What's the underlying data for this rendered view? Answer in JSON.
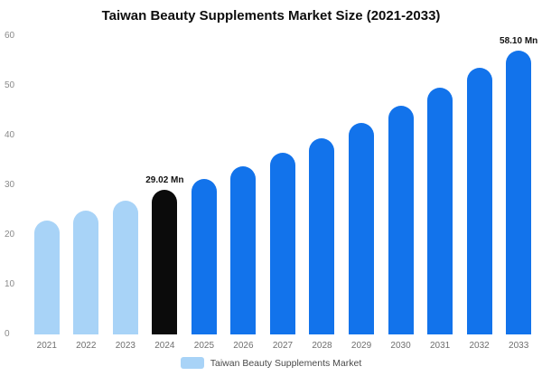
{
  "chart_data": {
    "type": "bar",
    "title": "Taiwan Beauty Supplements Market Size (2021-2033)",
    "categories": [
      "2021",
      "2022",
      "2023",
      "2024",
      "2025",
      "2026",
      "2027",
      "2028",
      "2029",
      "2030",
      "2031",
      "2032",
      "2033"
    ],
    "values": [
      23.0,
      24.9,
      26.9,
      29.02,
      31.3,
      33.8,
      36.5,
      39.4,
      42.6,
      46.0,
      49.7,
      53.7,
      58.1
    ],
    "value_labels": [
      "",
      "",
      "",
      "29.02 Mn",
      "",
      "",
      "",
      "",
      "",
      "",
      "",
      "",
      "58.10 Mn"
    ],
    "bar_colors": [
      "#a8d3f7",
      "#a8d3f7",
      "#a8d3f7",
      "#0b0b0b",
      "#1273eb",
      "#1273eb",
      "#1273eb",
      "#1273eb",
      "#1273eb",
      "#1273eb",
      "#1273eb",
      "#1273eb",
      "#1273eb"
    ],
    "ylim": [
      0,
      60
    ],
    "yticks": [
      0,
      10,
      20,
      30,
      40,
      50,
      60
    ],
    "xlabel": "",
    "ylabel": "",
    "grid": false,
    "legend_label": "Taiwan Beauty Supplements Market",
    "legend_position": "bottom",
    "legend_swatch_color": "#a8d3f7"
  }
}
